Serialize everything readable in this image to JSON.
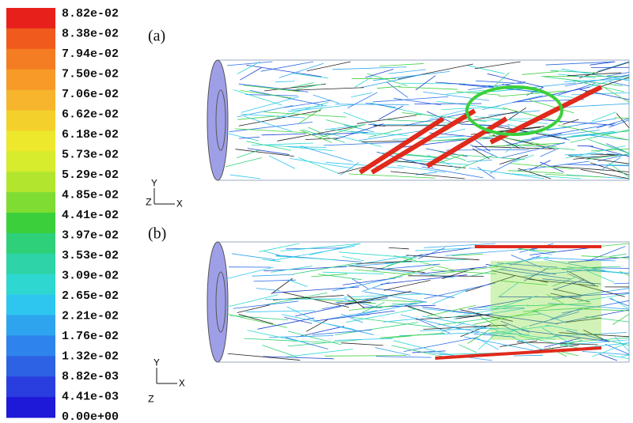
{
  "colorbar": {
    "labels": [
      "8.82e-02",
      "8.38e-02",
      "7.94e-02",
      "7.50e-02",
      "7.06e-02",
      "6.62e-02",
      "6.18e-02",
      "5.73e-02",
      "5.29e-02",
      "4.85e-02",
      "4.41e-02",
      "3.97e-02",
      "3.53e-02",
      "3.09e-02",
      "2.65e-02",
      "2.21e-02",
      "1.76e-02",
      "1.32e-02",
      "8.82e-03",
      "4.41e-03",
      "0.00e+00"
    ],
    "colors": [
      "#e8201c",
      "#f05a1c",
      "#f47c22",
      "#f79a28",
      "#f6b52c",
      "#f4d02c",
      "#eee82c",
      "#d6ec2c",
      "#b2e62e",
      "#7fdc32",
      "#3ccf3c",
      "#2fd07a",
      "#2ed4a8",
      "#2ed8d0",
      "#2ec6ee",
      "#2ea4ee",
      "#2e84ec",
      "#2e62e4",
      "#2a3ee0",
      "#1e18d8"
    ]
  },
  "panels": [
    {
      "label": "(a)",
      "axes": {
        "up": "Y",
        "out": "Z",
        "right": "X"
      }
    },
    {
      "label": "(b)",
      "axes": {
        "up": "Y",
        "out": "Z",
        "right": "X"
      }
    }
  ]
}
